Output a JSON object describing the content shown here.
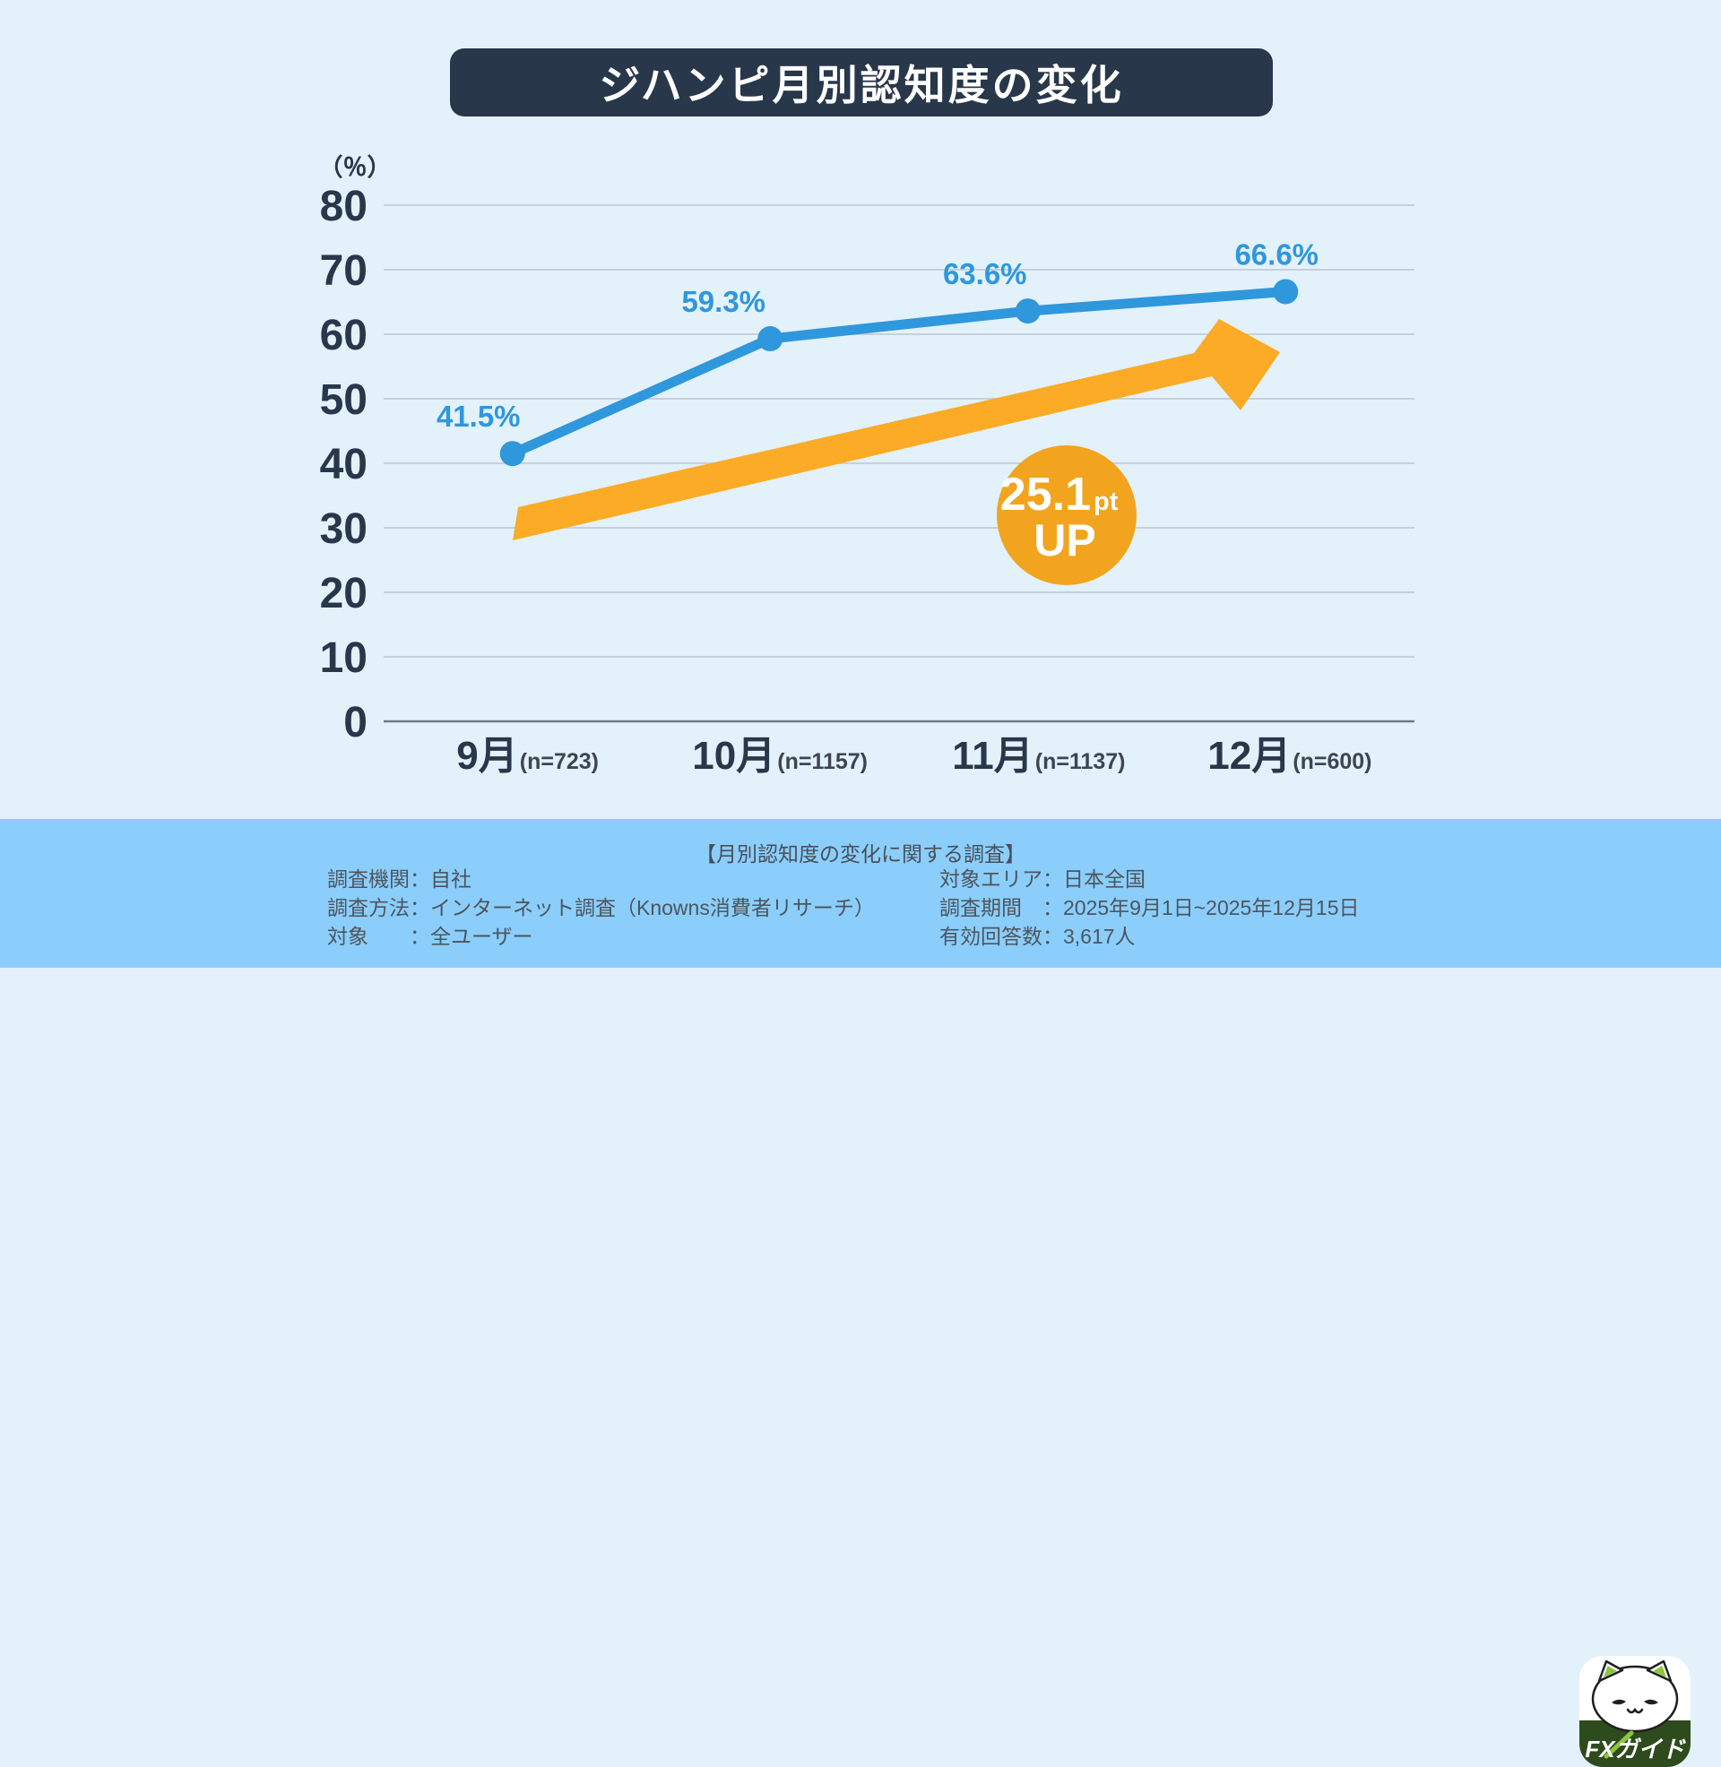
{
  "title": "ジハンピ月別認知度の変化",
  "chart_data": {
    "type": "line",
    "title": "ジハンピ月別認知度の変化",
    "unit_label": "（％）",
    "categories": [
      "9月",
      "10月",
      "11月",
      "12月"
    ],
    "sample_sizes": [
      "(n=723)",
      "(n=1157)",
      "(n=1137)",
      "(n=600)"
    ],
    "series": [
      {
        "name": "認知度",
        "values": [
          41.5,
          59.3,
          63.6,
          66.6
        ]
      }
    ],
    "value_labels": [
      "41.5%",
      "59.3%",
      "63.6%",
      "66.6%"
    ],
    "ylim": [
      0,
      80
    ],
    "yticks": [
      0,
      10,
      20,
      30,
      40,
      50,
      60,
      70,
      80
    ],
    "grid": true,
    "legend": "none",
    "annotation": {
      "value": "25.1",
      "unit": "pt",
      "word": "UP"
    }
  },
  "colors": {
    "background": "#e3f1fb",
    "footer_background": "#8bcefb",
    "title_background": "#28374a",
    "title_text": "#ffffff",
    "line": "#2f97dc",
    "value_label": "#2f97dc",
    "axis_text": "#28374a",
    "sample_text": "#3d4650",
    "gridline": "#c7d0d9",
    "zero_line": "#6e7a87",
    "arrow": "#fbab25",
    "badge": "#f2a41f",
    "badge_text": "#ffffff"
  },
  "footer": {
    "heading": "【月別認知度の変化に関する調査】",
    "left": [
      "調査機関：自社",
      "調査方法：インターネット調査（Knowns消費者リサーチ）",
      "対象　　：全ユーザー"
    ],
    "right": [
      "対象エリア：日本全国",
      "調査期間　：2025年9月1日~2025年12月15日",
      "有効回答数：3,617人"
    ],
    "logo_text": "FXガイド"
  }
}
